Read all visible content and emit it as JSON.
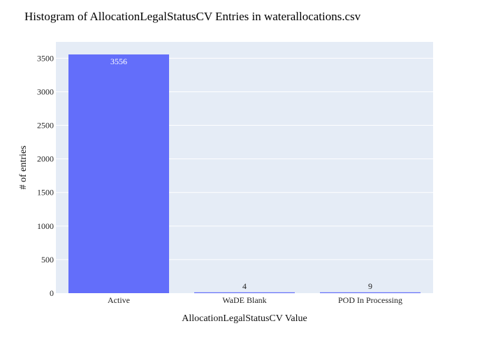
{
  "chart_data": {
    "type": "bar",
    "title": "Histogram of AllocationLegalStatusCV Entries in waterallocations.csv",
    "xlabel": "AllocationLegalStatusCV Value",
    "ylabel": "# of entries",
    "categories": [
      "Active",
      "WaDE Blank",
      "POD In Processing"
    ],
    "values": [
      3556,
      4,
      9
    ],
    "value_labels": [
      "3556",
      "4",
      "9"
    ],
    "ylim": [
      0,
      3556
    ],
    "yticks": [
      0,
      500,
      1000,
      1500,
      2000,
      2500,
      3000,
      3500
    ],
    "ytick_labels": [
      "0",
      "500",
      "1000",
      "1500",
      "2000",
      "2500",
      "3000",
      "3500"
    ],
    "grid": true,
    "colors": {
      "bar": "#636efa",
      "plot_background": "#e5ecf6",
      "gridline": "#ffffff",
      "label_inside": "#ffffff",
      "label_outside": "#222222"
    }
  }
}
